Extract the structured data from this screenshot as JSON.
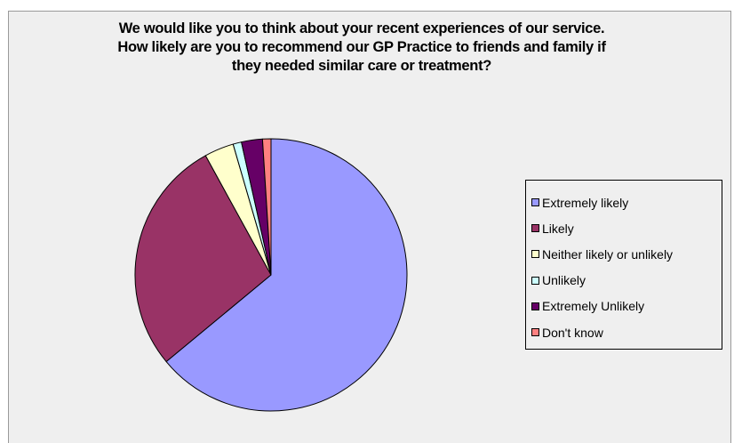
{
  "chart_data": {
    "type": "pie",
    "title_lines": [
      "We would like you to think about your recent experiences of our service.",
      "How likely are you to recommend our GP Practice to friends and family if",
      "they needed similar care or treatment?"
    ],
    "legend_placement": "right",
    "slices": [
      {
        "label": "Extremely likely",
        "value": 64,
        "color": "#9999ff"
      },
      {
        "label": "Likely",
        "value": 28,
        "color": "#993366"
      },
      {
        "label": "Neither likely or unlikely",
        "value": 3.5,
        "color": "#ffffcc"
      },
      {
        "label": "Unlikely",
        "value": 1,
        "color": "#ccffff"
      },
      {
        "label": "Extremely Unlikely",
        "value": 2.5,
        "color": "#660066"
      },
      {
        "label": "Don't know",
        "value": 1,
        "color": "#ff8080"
      }
    ]
  }
}
